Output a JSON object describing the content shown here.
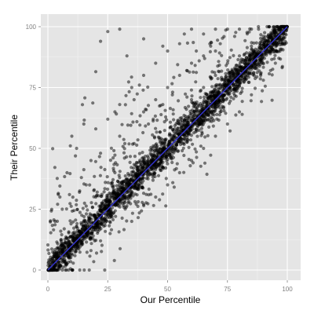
{
  "chart_data": {
    "type": "scatter",
    "title": "",
    "xlabel": "Our Percentile",
    "ylabel": "Their Percentile",
    "xlim": [
      0,
      100
    ],
    "ylim": [
      0,
      100
    ],
    "x_ticks": [
      0,
      25,
      50,
      75,
      100
    ],
    "y_ticks": [
      0,
      25,
      50,
      75,
      100
    ],
    "grid": true,
    "legend": "none",
    "panel_background": "#e5e5e5",
    "grid_color": "#ffffff",
    "point_color": "#000000",
    "point_opacity": 0.5,
    "fit_line": {
      "type": "linear",
      "color": "#3333cc",
      "from": [
        0,
        0
      ],
      "to": [
        100,
        100
      ]
    },
    "points": {
      "description_pattern": "dense diagonal cloud tightly around y = x with sparse upward outliers",
      "band_width": 3,
      "outlier_examples": [
        [
          25,
          98
        ],
        [
          22,
          94
        ],
        [
          30,
          99
        ],
        [
          40,
          95
        ],
        [
          48,
          92
        ],
        [
          57,
          97
        ],
        [
          60,
          99
        ],
        [
          33,
          88
        ],
        [
          40,
          80
        ],
        [
          36,
          70
        ],
        [
          12,
          50
        ],
        [
          10,
          55
        ],
        [
          15,
          60
        ],
        [
          20,
          58
        ],
        [
          25,
          62
        ],
        [
          28,
          65
        ],
        [
          30,
          68
        ],
        [
          18,
          45
        ],
        [
          22,
          48
        ],
        [
          35,
          75
        ],
        [
          45,
          85
        ],
        [
          50,
          90
        ],
        [
          55,
          93
        ],
        [
          65,
          97
        ],
        [
          70,
          99
        ],
        [
          75,
          99
        ],
        [
          8,
          40
        ],
        [
          5,
          30
        ],
        [
          14,
          38
        ],
        [
          16,
          35
        ],
        [
          60,
          85
        ],
        [
          62,
          90
        ],
        [
          68,
          92
        ],
        [
          80,
          99
        ],
        [
          85,
          99
        ],
        [
          3,
          20
        ],
        [
          6,
          25
        ],
        [
          9,
          31
        ],
        [
          30,
          55
        ],
        [
          40,
          65
        ],
        [
          45,
          70
        ],
        [
          50,
          75
        ],
        [
          55,
          80
        ],
        [
          58,
          82
        ],
        [
          65,
          88
        ],
        [
          70,
          90
        ],
        [
          72,
          93
        ],
        [
          78,
          96
        ],
        [
          88,
          99
        ],
        [
          42,
          60
        ],
        [
          44,
          62
        ],
        [
          48,
          68
        ],
        [
          52,
          72
        ],
        [
          20,
          30
        ],
        [
          24,
          36
        ],
        [
          28,
          40
        ],
        [
          32,
          46
        ],
        [
          36,
          52
        ],
        [
          60,
          70
        ],
        [
          65,
          75
        ],
        [
          70,
          80
        ],
        [
          75,
          85
        ],
        [
          80,
          88
        ],
        [
          85,
          92
        ],
        [
          90,
          96
        ],
        [
          35,
          20
        ],
        [
          40,
          27
        ],
        [
          45,
          30
        ],
        [
          50,
          35
        ],
        [
          55,
          40
        ],
        [
          60,
          45
        ],
        [
          65,
          50
        ],
        [
          70,
          55
        ],
        [
          75,
          60
        ],
        [
          80,
          65
        ],
        [
          85,
          72
        ],
        [
          90,
          78
        ],
        [
          93,
          82
        ],
        [
          95,
          85
        ],
        [
          97,
          90
        ],
        [
          99,
          93
        ],
        [
          18,
          8
        ],
        [
          22,
          12
        ],
        [
          26,
          15
        ]
      ]
    }
  }
}
